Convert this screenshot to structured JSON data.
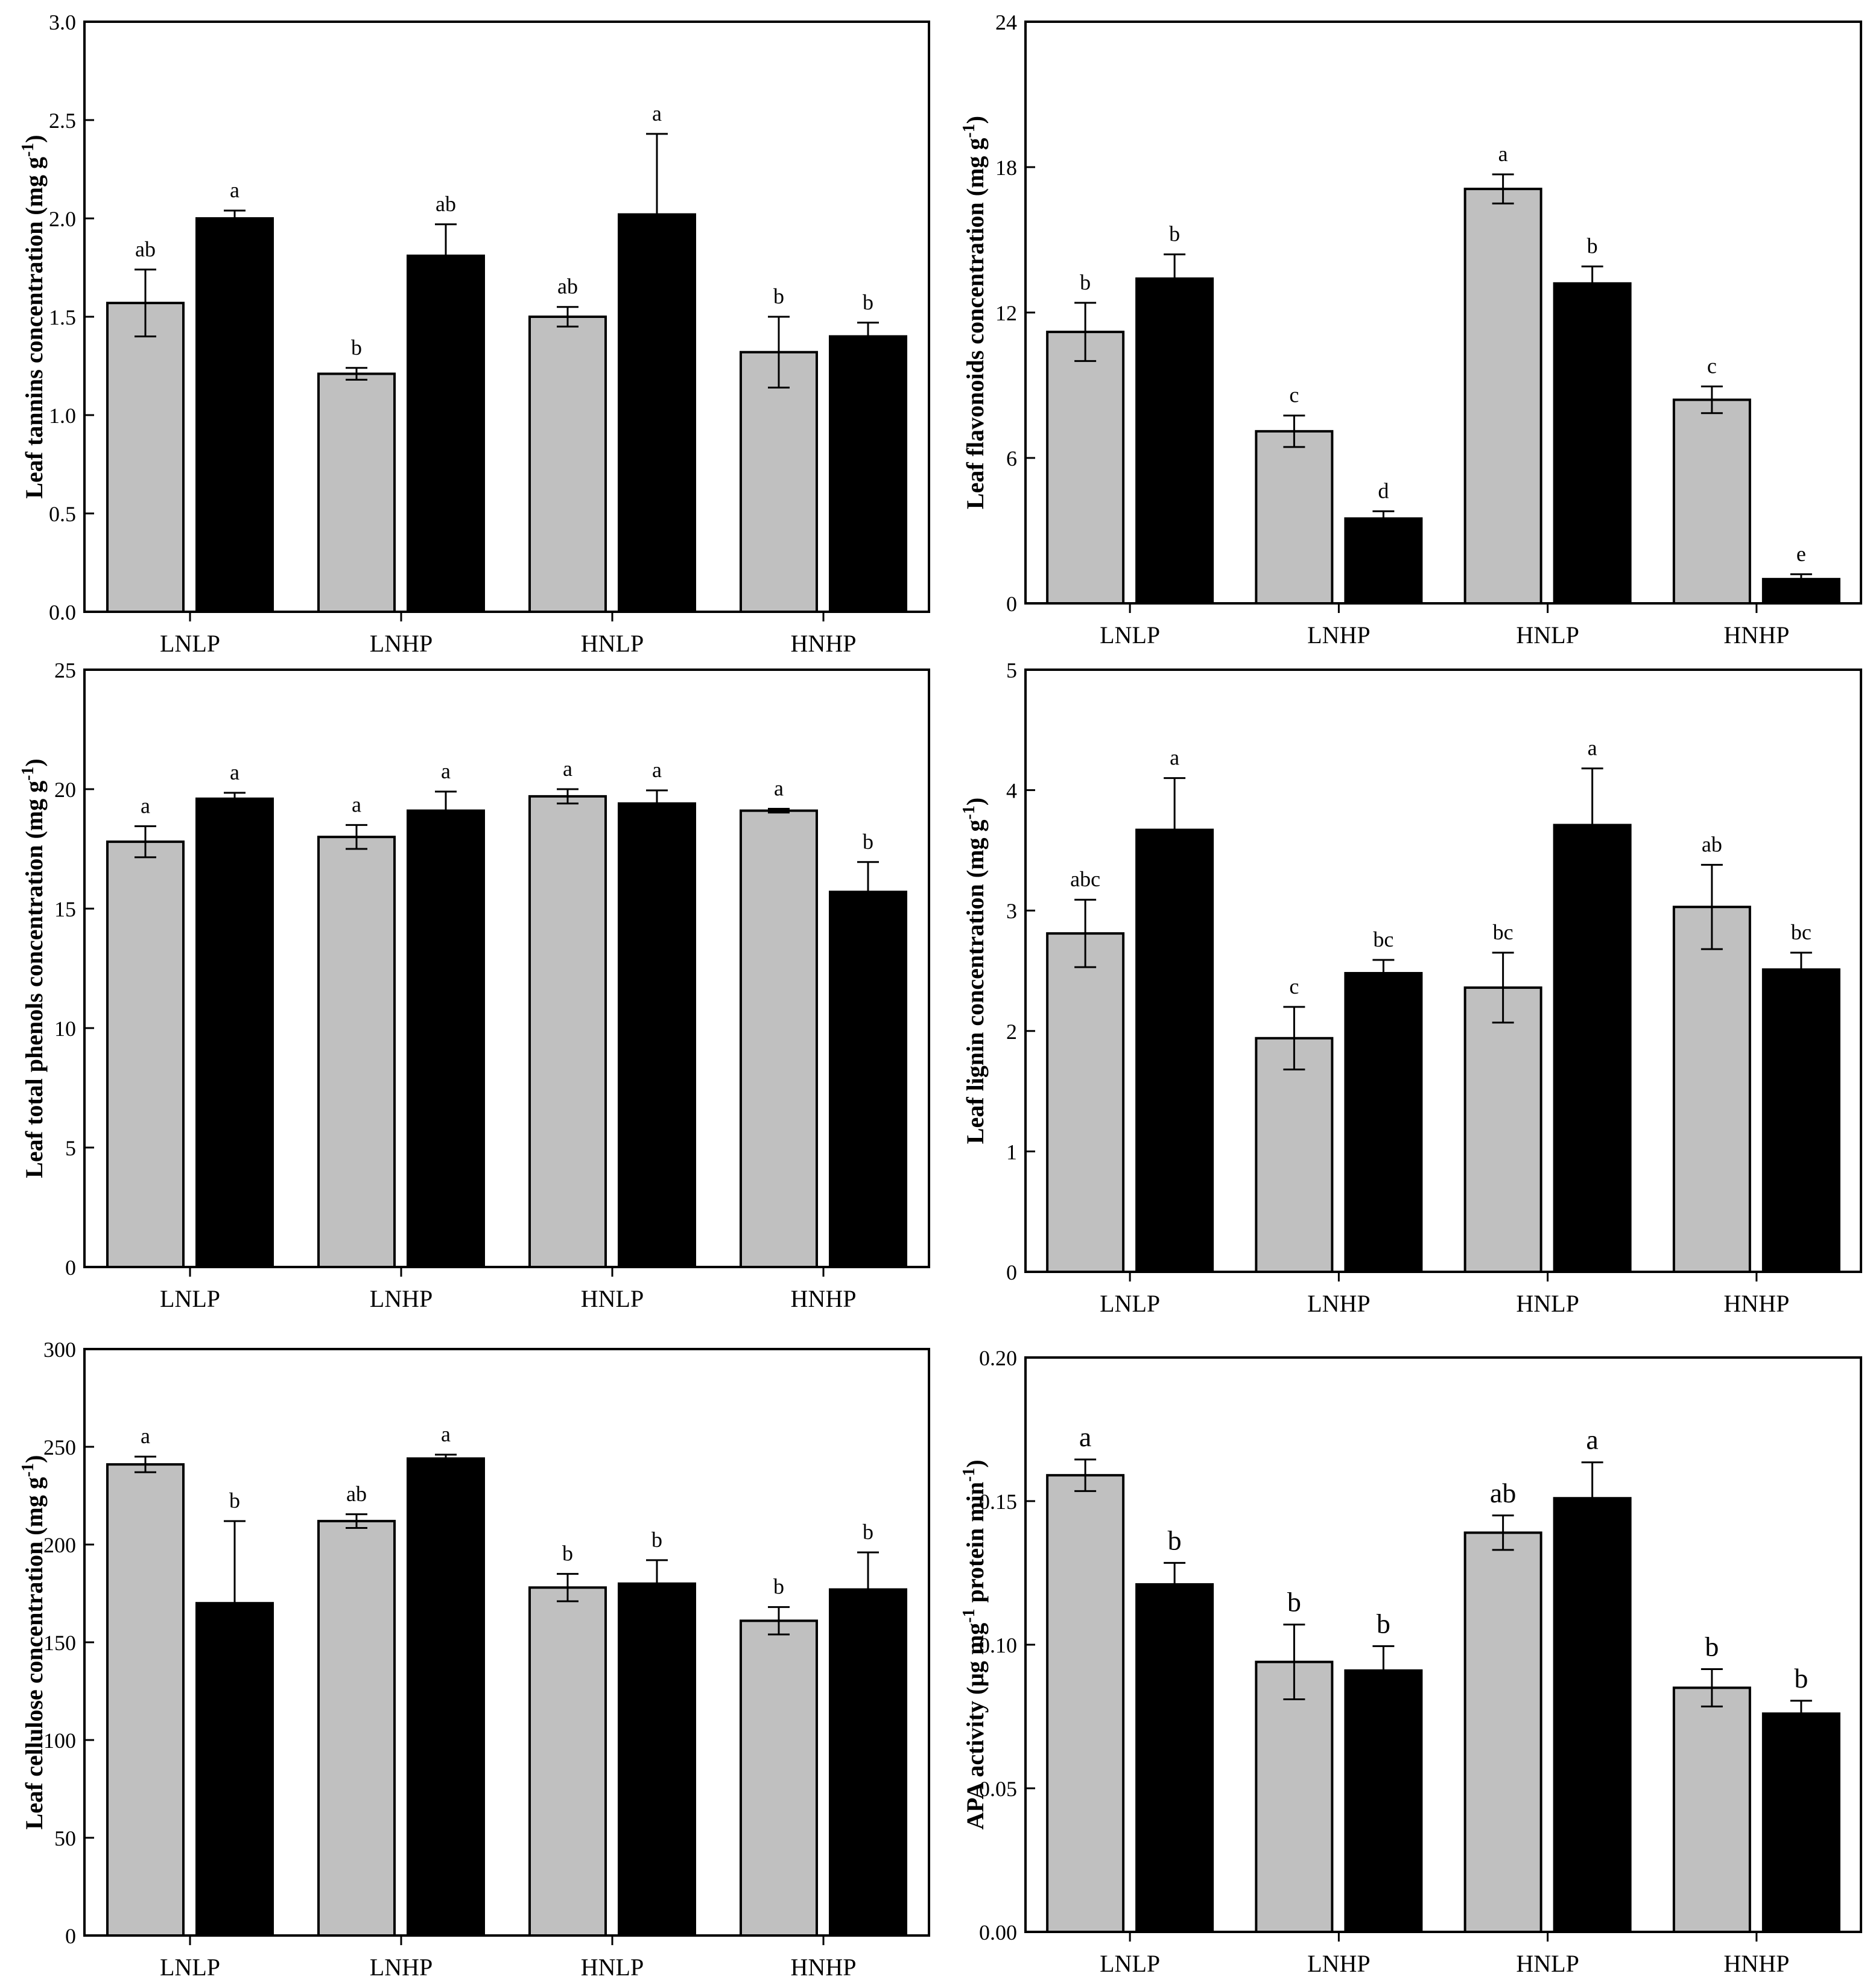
{
  "colors": {
    "series1": "#c0c0c0",
    "series2": "#000000",
    "axis": "#000000",
    "background": "#ffffff"
  },
  "chart_data": [
    {
      "type": "bar",
      "ylabel": "Leaf tannins concentration (mg g",
      "ylabel_sup": "-1",
      "ylabel_tail": ")",
      "categories": [
        "LNLP",
        "LNHP",
        "HNLP",
        "HNHP"
      ],
      "ylim": [
        0,
        3.0
      ],
      "yticks": [
        "0.0",
        "0.5",
        "1.0",
        "1.5",
        "2.0",
        "2.5",
        "3.0"
      ],
      "series": [
        {
          "name": "grey",
          "values": [
            1.57,
            1.21,
            1.5,
            1.32
          ],
          "errors": [
            0.17,
            0.03,
            0.05,
            0.18
          ],
          "letters": [
            "ab",
            "b",
            "ab",
            "b"
          ]
        },
        {
          "name": "black",
          "values": [
            2.0,
            1.81,
            2.02,
            1.4
          ],
          "errors": [
            0.04,
            0.16,
            0.41,
            0.07
          ],
          "letters": [
            "a",
            "ab",
            "a",
            "b"
          ]
        }
      ]
    },
    {
      "type": "bar",
      "ylabel": "Leaf  flavonoids concentration (mg g",
      "ylabel_sup": "-1",
      "ylabel_tail": ")",
      "categories": [
        "LNLP",
        "LNHP",
        "HNLP",
        "HNHP"
      ],
      "ylim": [
        0,
        24
      ],
      "yticks": [
        "0",
        "6",
        "12",
        "18",
        "24"
      ],
      "series": [
        {
          "name": "grey",
          "values": [
            11.2,
            7.1,
            17.1,
            8.4
          ],
          "errors": [
            1.2,
            0.65,
            0.6,
            0.55
          ],
          "letters": [
            "b",
            "c",
            "a",
            "c"
          ]
        },
        {
          "name": "black",
          "values": [
            13.4,
            3.5,
            13.2,
            1.0
          ],
          "errors": [
            1.0,
            0.3,
            0.7,
            0.2
          ],
          "letters": [
            "b",
            "d",
            "b",
            "e"
          ]
        }
      ]
    },
    {
      "type": "bar",
      "ylabel": "Leaf  total phenols concentration (mg g",
      "ylabel_sup": "-1",
      "ylabel_tail": ")",
      "categories": [
        "LNLP",
        "LNHP",
        "HNLP",
        "HNHP"
      ],
      "ylim": [
        0,
        25
      ],
      "yticks": [
        "0",
        "5",
        "10",
        "15",
        "20",
        "25"
      ],
      "series": [
        {
          "name": "grey",
          "values": [
            17.8,
            18.0,
            19.7,
            19.1
          ],
          "errors": [
            0.65,
            0.5,
            0.3,
            0.08
          ],
          "letters": [
            "a",
            "a",
            "a",
            "a"
          ]
        },
        {
          "name": "black",
          "values": [
            19.6,
            19.1,
            19.4,
            15.7
          ],
          "errors": [
            0.25,
            0.8,
            0.55,
            1.25
          ],
          "letters": [
            "a",
            "a",
            "a",
            "b"
          ]
        }
      ]
    },
    {
      "type": "bar",
      "ylabel": "Leaf  lignin concentration (mg g",
      "ylabel_sup": "-1",
      "ylabel_tail": ")",
      "categories": [
        "LNLP",
        "LNHP",
        "HNLP",
        "HNHP"
      ],
      "ylim": [
        0,
        5
      ],
      "yticks": [
        "0",
        "1",
        "2",
        "3",
        "4",
        "5"
      ],
      "series": [
        {
          "name": "grey",
          "values": [
            2.81,
            1.94,
            2.36,
            3.03
          ],
          "errors": [
            0.28,
            0.26,
            0.29,
            0.35
          ],
          "letters": [
            "abc",
            "c",
            "bc",
            "ab"
          ]
        },
        {
          "name": "black",
          "values": [
            3.67,
            2.48,
            3.71,
            2.51
          ],
          "errors": [
            0.43,
            0.11,
            0.47,
            0.14
          ],
          "letters": [
            "a",
            "bc",
            "a",
            "bc"
          ]
        }
      ]
    },
    {
      "type": "bar",
      "ylabel": "Leaf  cellulose concentration (mg g",
      "ylabel_sup": "-1",
      "ylabel_tail": ")",
      "categories": [
        "LNLP",
        "LNHP",
        "HNLP",
        "HNHP"
      ],
      "ylim": [
        0,
        300
      ],
      "yticks": [
        "0",
        "50",
        "100",
        "150",
        "200",
        "250",
        "300"
      ],
      "series": [
        {
          "name": "grey",
          "values": [
            241,
            212,
            178,
            161
          ],
          "errors": [
            4,
            3.5,
            7,
            7
          ],
          "letters": [
            "a",
            "ab",
            "b",
            "b"
          ]
        },
        {
          "name": "black",
          "values": [
            170,
            244,
            180,
            177
          ],
          "errors": [
            42,
            2,
            12,
            19
          ],
          "letters": [
            "b",
            "a",
            "b",
            "b"
          ]
        }
      ]
    },
    {
      "type": "bar",
      "ylabel": "APA activity (μg mg",
      "ylabel_sup": "-1",
      "ylabel_tail": " protein min",
      "ylabel_sup2": "-1",
      "ylabel_tail2": ")",
      "categories": [
        "LNLP",
        "LNHP",
        "HNLP",
        "HNHP"
      ],
      "ylim": [
        0,
        0.2
      ],
      "yticks": [
        "0.00",
        "0.05",
        "0.10",
        "0.15",
        "0.20"
      ],
      "series": [
        {
          "name": "grey",
          "values": [
            0.159,
            0.094,
            0.139,
            0.085
          ],
          "errors": [
            0.0055,
            0.013,
            0.006,
            0.0065
          ],
          "letters": [
            "a",
            "b",
            "ab",
            "b"
          ]
        },
        {
          "name": "black",
          "values": [
            0.121,
            0.091,
            0.151,
            0.076
          ],
          "errors": [
            0.0075,
            0.0085,
            0.0125,
            0.0045
          ],
          "letters": [
            "b",
            "b",
            "a",
            "b"
          ]
        }
      ]
    }
  ]
}
